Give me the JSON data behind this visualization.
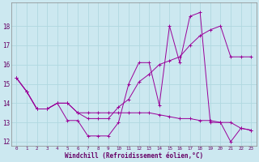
{
  "xlabel": "Windchill (Refroidissement éolien,°C)",
  "bg_color": "#cce8f0",
  "line_color": "#990099",
  "grid_color": "#b0d8e0",
  "xlim": [
    -0.5,
    23.5
  ],
  "ylim": [
    11.8,
    19.2
  ],
  "xticks": [
    0,
    1,
    2,
    3,
    4,
    5,
    6,
    7,
    8,
    9,
    10,
    11,
    12,
    13,
    14,
    15,
    16,
    17,
    18,
    19,
    20,
    21,
    22,
    23
  ],
  "yticks": [
    12,
    13,
    14,
    15,
    16,
    17,
    18
  ],
  "series1": [
    15.3,
    14.6,
    13.7,
    13.7,
    14.0,
    14.0,
    13.5,
    13.5,
    13.5,
    13.5,
    13.5,
    13.5,
    13.5,
    13.5,
    13.4,
    13.3,
    13.2,
    13.2,
    13.1,
    13.1,
    13.0,
    13.0,
    12.7,
    12.6
  ],
  "series2": [
    15.3,
    14.6,
    13.7,
    13.7,
    14.0,
    13.1,
    13.1,
    12.3,
    12.3,
    12.3,
    13.0,
    15.0,
    16.1,
    16.1,
    13.9,
    18.0,
    16.1,
    18.5,
    18.7,
    13.0,
    13.0,
    12.0,
    12.7,
    12.6
  ],
  "series3": [
    15.3,
    14.6,
    13.7,
    13.7,
    14.0,
    14.0,
    13.5,
    13.2,
    13.2,
    13.2,
    13.8,
    14.2,
    15.1,
    15.5,
    16.0,
    16.2,
    16.4,
    17.0,
    17.5,
    17.8,
    18.0,
    16.4,
    16.4,
    16.4
  ]
}
